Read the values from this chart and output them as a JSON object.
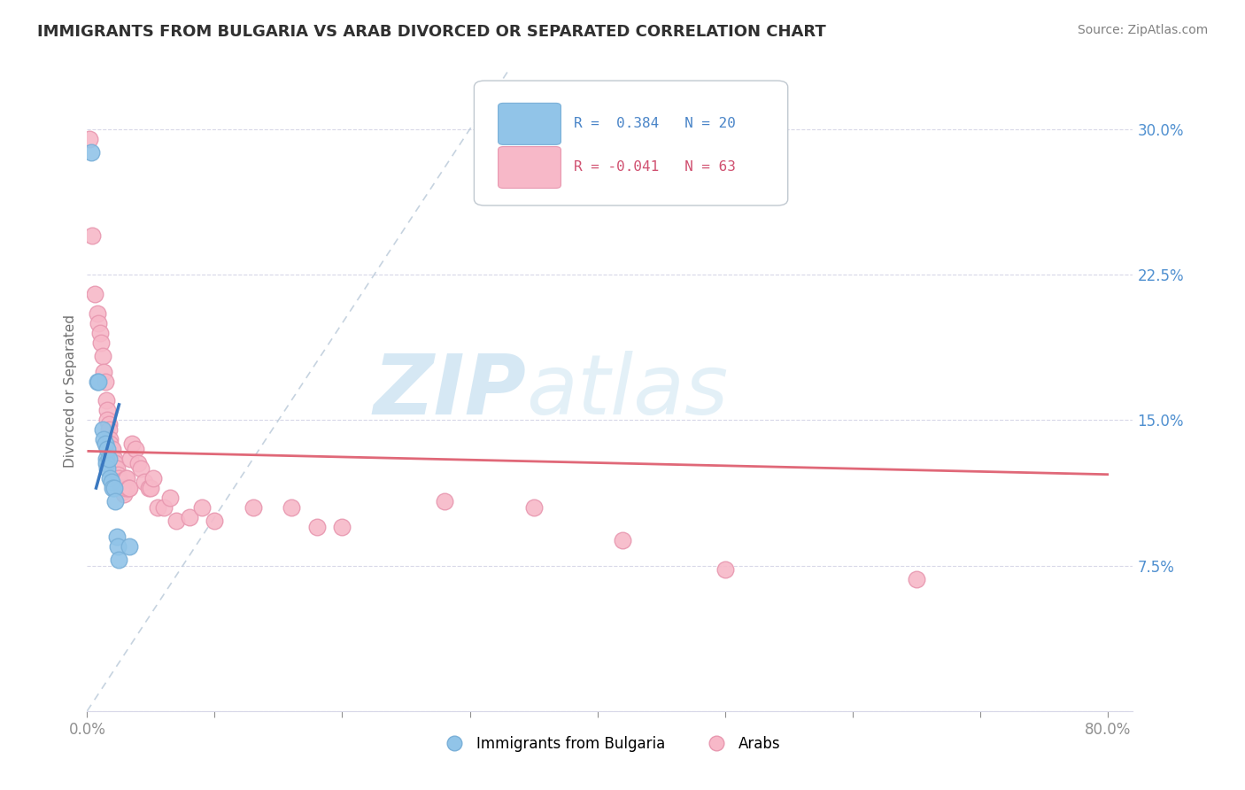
{
  "title": "IMMIGRANTS FROM BULGARIA VS ARAB DIVORCED OR SEPARATED CORRELATION CHART",
  "source": "Source: ZipAtlas.com",
  "ylabel": "Divorced or Separated",
  "watermark_zip": "ZIP",
  "watermark_atlas": "atlas",
  "legend_blue_r": "R =  0.384",
  "legend_blue_n": "N = 20",
  "legend_pink_r": "R = -0.041",
  "legend_pink_n": "N = 63",
  "legend_blue_label": "Immigrants from Bulgaria",
  "legend_pink_label": "Arabs",
  "ytick_vals": [
    0.0,
    0.075,
    0.15,
    0.225,
    0.3
  ],
  "ytick_labels": [
    "",
    "7.5%",
    "15.0%",
    "22.5%",
    "30.0%"
  ],
  "xtick_vals": [
    0.0,
    0.1,
    0.2,
    0.3,
    0.4,
    0.5,
    0.6,
    0.7,
    0.8
  ],
  "xtick_labels": [
    "0.0%",
    "",
    "",
    "",
    "",
    "",
    "",
    "",
    "80.0%"
  ],
  "xlim": [
    0.0,
    0.82
  ],
  "ylim": [
    0.0,
    0.33
  ],
  "blue_color": "#91c4e8",
  "blue_edge_color": "#7ab0d8",
  "pink_color": "#f7b8c8",
  "pink_edge_color": "#e898b0",
  "blue_trend_color": "#3a78c0",
  "pink_trend_color": "#e06878",
  "ref_line_color": "#b8c8d8",
  "grid_color": "#d8d8e8",
  "background_color": "#ffffff",
  "title_color": "#303030",
  "source_color": "#808080",
  "axis_tick_color": "#909090",
  "yaxis_label_color": "#707070",
  "ytick_color": "#5090d0",
  "blue_scatter": [
    [
      0.003,
      0.288
    ],
    [
      0.008,
      0.17
    ],
    [
      0.009,
      0.17
    ],
    [
      0.012,
      0.145
    ],
    [
      0.013,
      0.14
    ],
    [
      0.014,
      0.138
    ],
    [
      0.015,
      0.13
    ],
    [
      0.015,
      0.128
    ],
    [
      0.016,
      0.135
    ],
    [
      0.016,
      0.125
    ],
    [
      0.017,
      0.13
    ],
    [
      0.018,
      0.12
    ],
    [
      0.019,
      0.118
    ],
    [
      0.02,
      0.115
    ],
    [
      0.021,
      0.115
    ],
    [
      0.022,
      0.108
    ],
    [
      0.023,
      0.09
    ],
    [
      0.024,
      0.085
    ],
    [
      0.025,
      0.078
    ],
    [
      0.033,
      0.085
    ]
  ],
  "pink_scatter": [
    [
      0.002,
      0.295
    ],
    [
      0.004,
      0.245
    ],
    [
      0.006,
      0.215
    ],
    [
      0.008,
      0.205
    ],
    [
      0.009,
      0.2
    ],
    [
      0.01,
      0.195
    ],
    [
      0.011,
      0.19
    ],
    [
      0.012,
      0.183
    ],
    [
      0.013,
      0.175
    ],
    [
      0.014,
      0.17
    ],
    [
      0.015,
      0.16
    ],
    [
      0.016,
      0.155
    ],
    [
      0.016,
      0.15
    ],
    [
      0.017,
      0.148
    ],
    [
      0.017,
      0.145
    ],
    [
      0.018,
      0.14
    ],
    [
      0.018,
      0.138
    ],
    [
      0.019,
      0.135
    ],
    [
      0.02,
      0.135
    ],
    [
      0.02,
      0.13
    ],
    [
      0.021,
      0.13
    ],
    [
      0.021,
      0.128
    ],
    [
      0.022,
      0.128
    ],
    [
      0.022,
      0.125
    ],
    [
      0.023,
      0.125
    ],
    [
      0.024,
      0.122
    ],
    [
      0.025,
      0.12
    ],
    [
      0.025,
      0.118
    ],
    [
      0.026,
      0.118
    ],
    [
      0.027,
      0.115
    ],
    [
      0.028,
      0.115
    ],
    [
      0.028,
      0.113
    ],
    [
      0.029,
      0.112
    ],
    [
      0.03,
      0.12
    ],
    [
      0.03,
      0.115
    ],
    [
      0.031,
      0.12
    ],
    [
      0.032,
      0.115
    ],
    [
      0.033,
      0.115
    ],
    [
      0.034,
      0.13
    ],
    [
      0.035,
      0.138
    ],
    [
      0.038,
      0.135
    ],
    [
      0.04,
      0.128
    ],
    [
      0.042,
      0.125
    ],
    [
      0.045,
      0.118
    ],
    [
      0.048,
      0.115
    ],
    [
      0.05,
      0.115
    ],
    [
      0.052,
      0.12
    ],
    [
      0.055,
      0.105
    ],
    [
      0.06,
      0.105
    ],
    [
      0.065,
      0.11
    ],
    [
      0.07,
      0.098
    ],
    [
      0.08,
      0.1
    ],
    [
      0.09,
      0.105
    ],
    [
      0.1,
      0.098
    ],
    [
      0.13,
      0.105
    ],
    [
      0.16,
      0.105
    ],
    [
      0.18,
      0.095
    ],
    [
      0.2,
      0.095
    ],
    [
      0.28,
      0.108
    ],
    [
      0.35,
      0.105
    ],
    [
      0.42,
      0.088
    ],
    [
      0.5,
      0.073
    ],
    [
      0.65,
      0.068
    ]
  ],
  "blue_trendline_x": [
    0.007,
    0.025
  ],
  "blue_trendline_y": [
    0.115,
    0.158
  ],
  "pink_trendline_x": [
    0.001,
    0.8
  ],
  "pink_trendline_y": [
    0.134,
    0.122
  ],
  "ref_line_x": [
    0.0,
    0.33
  ],
  "ref_line_y": [
    0.0,
    0.33
  ]
}
